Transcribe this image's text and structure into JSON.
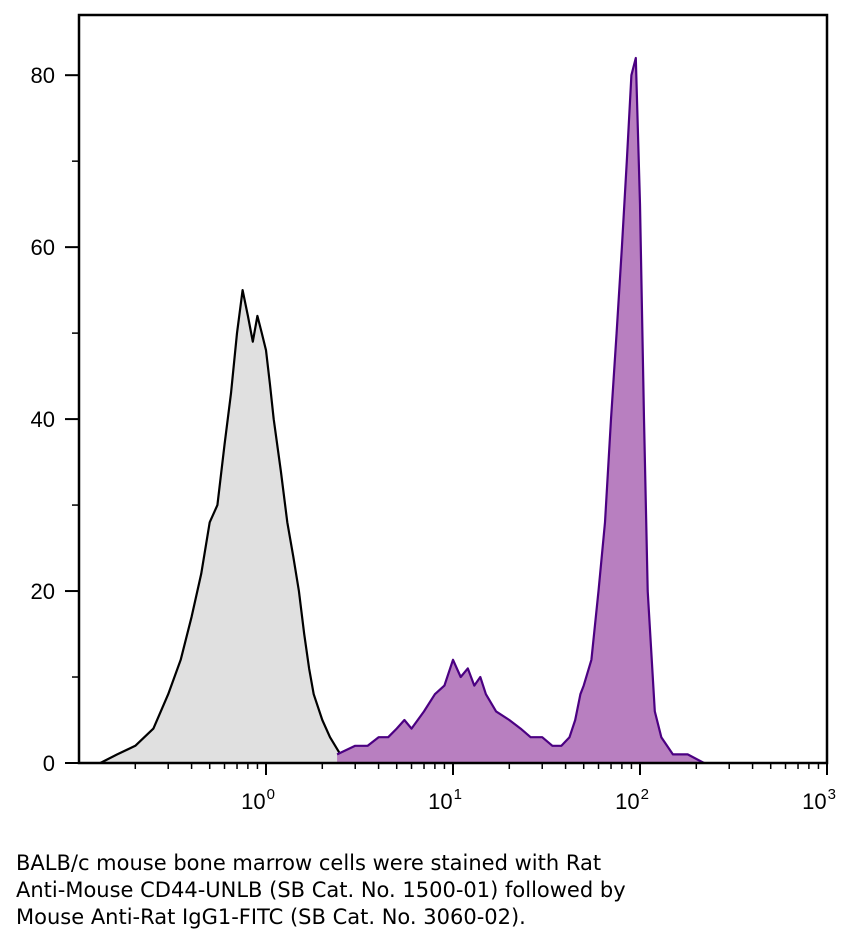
{
  "chart_data": {
    "type": "area",
    "title": "",
    "xlabel": "",
    "ylabel": "",
    "x_scale": "log",
    "xlim": [
      0.1,
      1000
    ],
    "ylim": [
      0,
      87
    ],
    "x_ticks": [
      {
        "value": 1,
        "base": "10",
        "exp": "0"
      },
      {
        "value": 10,
        "base": "10",
        "exp": "1"
      },
      {
        "value": 100,
        "base": "10",
        "exp": "2"
      },
      {
        "value": 1000,
        "base": "10",
        "exp": "3"
      }
    ],
    "y_ticks": [
      0,
      20,
      40,
      60,
      80
    ],
    "grid": false,
    "legend": "none",
    "series": [
      {
        "color_line": "#000000",
        "color_fill": "#e0e0e0",
        "x": [
          0.13,
          0.16,
          0.2,
          0.25,
          0.3,
          0.35,
          0.4,
          0.45,
          0.5,
          0.55,
          0.6,
          0.65,
          0.7,
          0.75,
          0.8,
          0.85,
          0.9,
          0.95,
          1.0,
          1.05,
          1.1,
          1.2,
          1.3,
          1.4,
          1.5,
          1.6,
          1.7,
          1.8,
          2.0,
          2.2,
          2.5,
          2.8
        ],
        "y": [
          0,
          1,
          2,
          4,
          8,
          12,
          17,
          22,
          28,
          30,
          37,
          43,
          50,
          55,
          52,
          49,
          52,
          50,
          48,
          44,
          40,
          34,
          28,
          24,
          20,
          15,
          11,
          8,
          5,
          3,
          1,
          0
        ]
      },
      {
        "color_line": "#4b0082",
        "color_fill": "#b87fc0",
        "x": [
          2.4,
          3.0,
          3.5,
          4.0,
          4.5,
          5.0,
          5.5,
          6.0,
          7.0,
          8.0,
          9.0,
          10.0,
          11.0,
          12.0,
          13.0,
          14.0,
          15.0,
          17.0,
          20.0,
          23.0,
          26.0,
          30.0,
          34.0,
          38.0,
          42.0,
          45.0,
          48.0,
          50.0,
          55.0,
          60.0,
          65.0,
          70.0,
          75.0,
          80.0,
          85.0,
          90.0,
          95.0,
          100.0,
          105.0,
          110.0,
          120.0,
          130.0,
          150.0,
          180.0,
          220.0
        ],
        "y": [
          1,
          2,
          2,
          3,
          3,
          4,
          5,
          4,
          6,
          8,
          9,
          12,
          10,
          11,
          9,
          10,
          8,
          6,
          5,
          4,
          3,
          3,
          2,
          2,
          3,
          5,
          8,
          9,
          12,
          20,
          28,
          40,
          50,
          60,
          70,
          80,
          82,
          65,
          40,
          20,
          6,
          3,
          1,
          1,
          0
        ]
      }
    ]
  },
  "caption": [
    "BALB/c mouse bone marrow cells were stained with Rat",
    "Anti-Mouse CD44-UNLB (SB Cat. No. 1500-01) followed by",
    "Mouse Anti-Rat IgG1-FITC (SB Cat. No. 3060-02)."
  ]
}
